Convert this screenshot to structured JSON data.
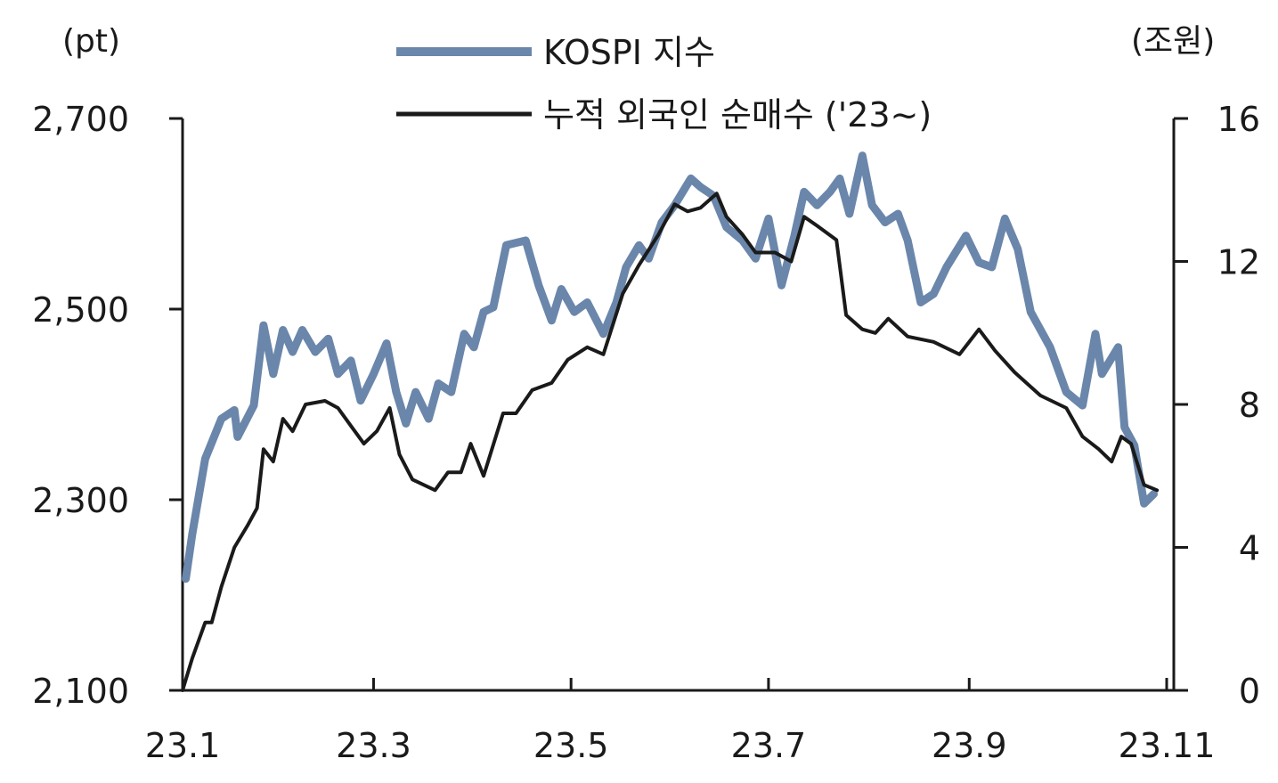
{
  "chart_data": {
    "type": "line",
    "title": "",
    "left_axis": {
      "unit_label": "(pt)",
      "ylim": [
        2100,
        2700
      ],
      "ticks": [
        "2,100",
        "2,300",
        "2,500",
        "2,700"
      ],
      "tick_values": [
        2100,
        2300,
        2500,
        2700
      ]
    },
    "right_axis": {
      "unit_label": "(조원)",
      "ylim": [
        0,
        16
      ],
      "ticks": [
        "0",
        "4",
        "8",
        "12",
        "16"
      ],
      "tick_values": [
        0,
        4,
        8,
        12,
        16
      ]
    },
    "x_axis": {
      "ticks": [
        "23.1",
        "23.3",
        "23.5",
        "23.7",
        "23.9",
        "23.11"
      ],
      "tick_dates": [
        "2023-01-01",
        "2023-03-01",
        "2023-05-01",
        "2023-07-01",
        "2023-09-01",
        "2023-11-01"
      ],
      "range": [
        "2023-01-01",
        "2023-11-01"
      ]
    },
    "grid": false,
    "legend_placement": "top",
    "series": [
      {
        "name": "KOSPI 지수",
        "axis": "left",
        "color": "#6a86ab",
        "x": [
          "2023-01-02",
          "2023-01-04",
          "2023-01-08",
          "2023-01-13",
          "2023-01-17",
          "2023-01-18",
          "2023-01-23",
          "2023-01-26",
          "2023-01-29",
          "2023-02-01",
          "2023-02-04",
          "2023-02-07",
          "2023-02-11",
          "2023-02-15",
          "2023-02-18",
          "2023-02-22",
          "2023-02-25",
          "2023-03-01",
          "2023-03-05",
          "2023-03-08",
          "2023-03-11",
          "2023-03-14",
          "2023-03-18",
          "2023-03-21",
          "2023-03-25",
          "2023-03-29",
          "2023-04-01",
          "2023-04-04",
          "2023-04-07",
          "2023-04-11",
          "2023-04-17",
          "2023-04-21",
          "2023-04-25",
          "2023-04-28",
          "2023-05-02",
          "2023-05-06",
          "2023-05-11",
          "2023-05-15",
          "2023-05-18",
          "2023-05-22",
          "2023-05-25",
          "2023-05-29",
          "2023-06-02",
          "2023-06-07",
          "2023-06-10",
          "2023-06-14",
          "2023-06-18",
          "2023-06-23",
          "2023-06-27",
          "2023-07-01",
          "2023-07-05",
          "2023-07-09",
          "2023-07-12",
          "2023-07-16",
          "2023-07-20",
          "2023-07-23",
          "2023-07-26",
          "2023-07-30",
          "2023-08-02",
          "2023-08-06",
          "2023-08-10",
          "2023-08-13",
          "2023-08-17",
          "2023-08-21",
          "2023-08-25",
          "2023-08-31",
          "2023-09-04",
          "2023-09-08",
          "2023-09-12",
          "2023-09-16",
          "2023-09-20",
          "2023-09-26",
          "2023-10-01",
          "2023-10-06",
          "2023-10-10",
          "2023-10-12",
          "2023-10-17",
          "2023-10-19",
          "2023-10-22",
          "2023-10-25",
          "2023-10-28"
        ],
        "values": [
          2217,
          2264,
          2343,
          2385,
          2394,
          2366,
          2399,
          2483,
          2432,
          2478,
          2455,
          2478,
          2455,
          2469,
          2432,
          2446,
          2404,
          2432,
          2464,
          2413,
          2380,
          2413,
          2385,
          2422,
          2413,
          2474,
          2460,
          2497,
          2502,
          2567,
          2572,
          2525,
          2488,
          2521,
          2497,
          2507,
          2474,
          2507,
          2544,
          2567,
          2553,
          2591,
          2609,
          2637,
          2628,
          2619,
          2586,
          2572,
          2553,
          2595,
          2525,
          2577,
          2623,
          2609,
          2623,
          2637,
          2600,
          2661,
          2609,
          2591,
          2600,
          2572,
          2507,
          2516,
          2544,
          2577,
          2549,
          2544,
          2595,
          2563,
          2497,
          2460,
          2413,
          2399,
          2474,
          2432,
          2460,
          2376,
          2357,
          2296,
          2306
        ]
      },
      {
        "name": "누적 외국인 순매수 ('23~)",
        "axis": "right",
        "color": "#1a1a1a",
        "x": [
          "2023-01-01",
          "2023-01-04",
          "2023-01-08",
          "2023-01-10",
          "2023-01-13",
          "2023-01-17",
          "2023-01-21",
          "2023-01-24",
          "2023-01-26",
          "2023-01-29",
          "2023-02-01",
          "2023-02-04",
          "2023-02-08",
          "2023-02-14",
          "2023-02-18",
          "2023-02-22",
          "2023-02-26",
          "2023-03-02",
          "2023-03-06",
          "2023-03-09",
          "2023-03-13",
          "2023-03-20",
          "2023-03-24",
          "2023-03-28",
          "2023-03-31",
          "2023-04-04",
          "2023-04-10",
          "2023-04-14",
          "2023-04-19",
          "2023-04-25",
          "2023-04-30",
          "2023-05-06",
          "2023-05-11",
          "2023-05-17",
          "2023-05-22",
          "2023-05-28",
          "2023-06-02",
          "2023-06-06",
          "2023-06-10",
          "2023-06-15",
          "2023-06-18",
          "2023-06-23",
          "2023-06-27",
          "2023-07-03",
          "2023-07-08",
          "2023-07-12",
          "2023-07-16",
          "2023-07-22",
          "2023-07-25",
          "2023-07-30",
          "2023-08-03",
          "2023-08-07",
          "2023-08-13",
          "2023-08-21",
          "2023-08-29",
          "2023-09-04",
          "2023-09-09",
          "2023-09-15",
          "2023-09-23",
          "2023-10-01",
          "2023-10-06",
          "2023-10-11",
          "2023-10-15",
          "2023-10-18",
          "2023-10-21",
          "2023-10-25",
          "2023-10-29"
        ],
        "values": [
          0,
          0.9,
          1.9,
          1.9,
          2.9,
          4.0,
          4.6,
          5.1,
          6.75,
          6.4,
          7.6,
          7.25,
          8.0,
          8.1,
          7.9,
          7.4,
          6.9,
          7.25,
          7.9,
          6.6,
          5.9,
          5.6,
          6.1,
          6.1,
          6.9,
          6.0,
          7.75,
          7.75,
          8.4,
          8.6,
          9.25,
          9.6,
          9.4,
          11.1,
          11.9,
          12.75,
          13.6,
          13.4,
          13.5,
          13.9,
          13.25,
          12.75,
          12.25,
          12.25,
          12.0,
          13.25,
          13.0,
          12.6,
          10.5,
          10.1,
          10.0,
          10.4,
          9.9,
          9.75,
          9.4,
          10.1,
          9.5,
          8.9,
          8.25,
          7.9,
          7.1,
          6.75,
          6.4,
          7.1,
          6.9,
          5.75,
          5.6
        ]
      }
    ]
  }
}
